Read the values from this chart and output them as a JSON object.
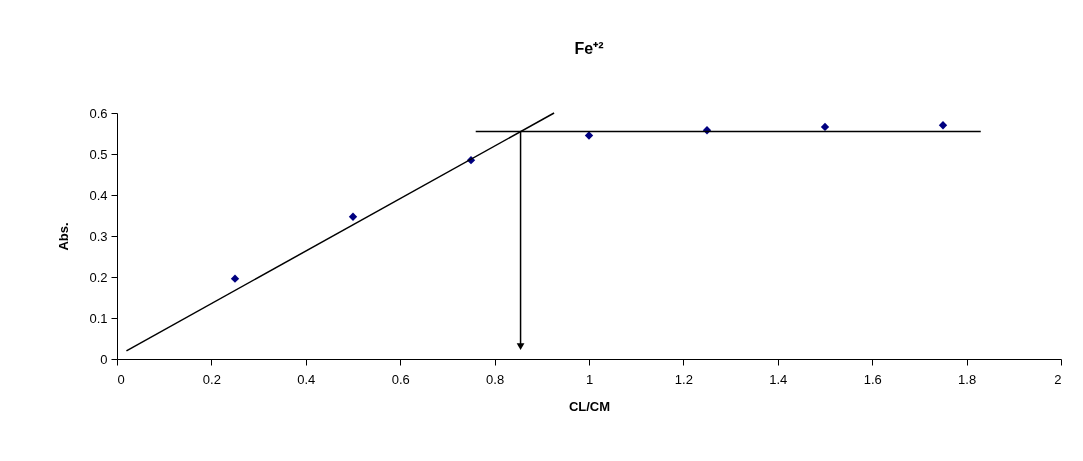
{
  "chart_data": {
    "type": "scatter",
    "title": "Fe⁺²",
    "xlabel": "CL/CM",
    "ylabel": "Abs.",
    "xlim": [
      0,
      2
    ],
    "ylim": [
      0,
      0.6
    ],
    "xticks": [
      0,
      0.2,
      0.4,
      0.6,
      0.8,
      1,
      1.2,
      1.4,
      1.6,
      1.8,
      2
    ],
    "yticks": [
      0,
      0.1,
      0.2,
      0.3,
      0.4,
      0.5,
      0.6
    ],
    "grid": false,
    "marker": "diamond",
    "x": [
      0.25,
      0.5,
      0.75,
      1,
      1.25,
      1.5,
      1.75
    ],
    "series": [
      {
        "color": "#000080",
        "values": [
          0.196,
          0.347,
          0.485,
          0.545,
          0.558,
          0.566,
          0.57
        ]
      },
      {
        "type": "line",
        "color": "#000000",
        "marker": "none",
        "x": [
          0.02,
          0.926
        ],
        "values": [
          0.02,
          0.6
        ]
      },
      {
        "type": "line",
        "color": "#000000",
        "marker": "none",
        "x": [
          0.76,
          1.83
        ],
        "values": [
          0.555,
          0.555
        ]
      },
      {
        "type": "line",
        "color": "#000000",
        "marker": "triangle",
        "x": [
          0.855,
          0.855
        ],
        "values": [
          0.555,
          0.03
        ]
      }
    ]
  }
}
